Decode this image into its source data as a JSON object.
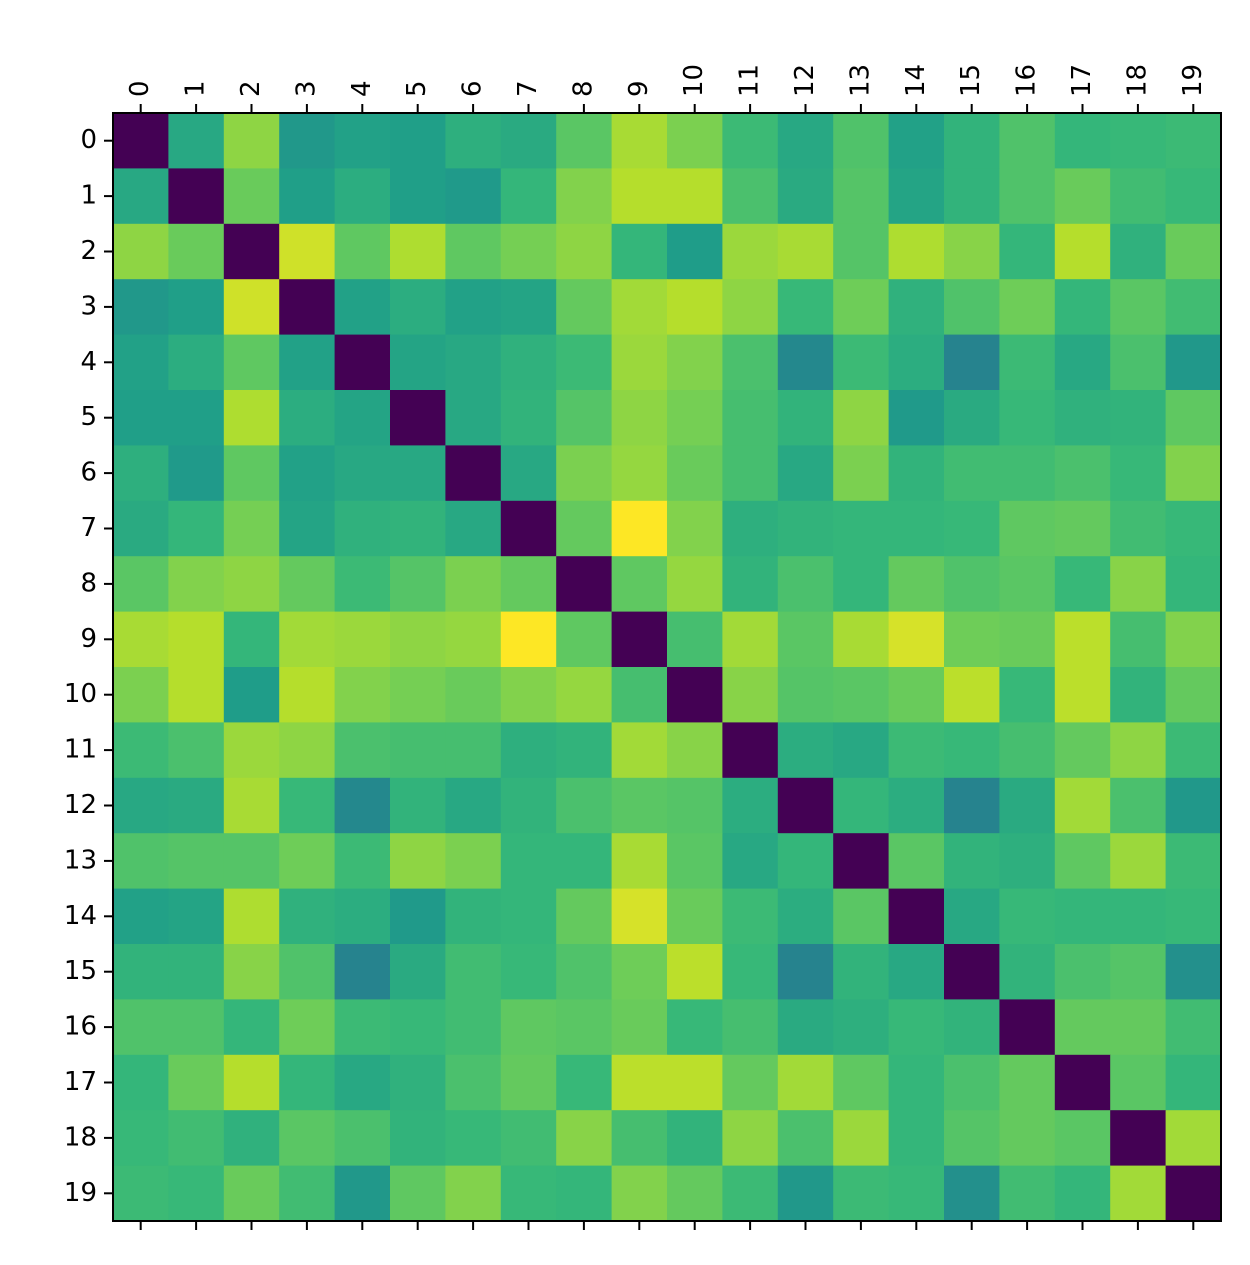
{
  "chart_data": {
    "type": "heatmap",
    "colormap": "viridis",
    "zlim": [
      0,
      1
    ],
    "xlim": [
      -0.5,
      19.5
    ],
    "ylim": [
      19.5,
      -0.5
    ],
    "xticks": [
      0,
      1,
      2,
      3,
      4,
      5,
      6,
      7,
      8,
      9,
      10,
      11,
      12,
      13,
      14,
      15,
      16,
      17,
      18,
      19
    ],
    "yticks": [
      0,
      1,
      2,
      3,
      4,
      5,
      6,
      7,
      8,
      9,
      10,
      11,
      12,
      13,
      14,
      15,
      16,
      17,
      18,
      19
    ],
    "values": [
      [
        0,
        0.6,
        0.83,
        0.53,
        0.57,
        0.56,
        0.63,
        0.61,
        0.74,
        0.87,
        0.8,
        0.68,
        0.6,
        0.72,
        0.57,
        0.65,
        0.72,
        0.66,
        0.67,
        0.68
      ],
      [
        0.6,
        0,
        0.77,
        0.56,
        0.62,
        0.56,
        0.54,
        0.66,
        0.81,
        0.89,
        0.89,
        0.71,
        0.61,
        0.73,
        0.58,
        0.65,
        0.72,
        0.77,
        0.69,
        0.67
      ],
      [
        0.83,
        0.77,
        0,
        0.93,
        0.75,
        0.88,
        0.75,
        0.79,
        0.83,
        0.66,
        0.55,
        0.85,
        0.87,
        0.73,
        0.88,
        0.82,
        0.66,
        0.89,
        0.64,
        0.77
      ],
      [
        0.53,
        0.56,
        0.93,
        0,
        0.57,
        0.62,
        0.57,
        0.58,
        0.76,
        0.86,
        0.89,
        0.83,
        0.67,
        0.78,
        0.64,
        0.72,
        0.78,
        0.66,
        0.74,
        0.69
      ],
      [
        0.57,
        0.62,
        0.75,
        0.57,
        0,
        0.58,
        0.6,
        0.64,
        0.68,
        0.85,
        0.81,
        0.71,
        0.47,
        0.68,
        0.62,
        0.45,
        0.68,
        0.6,
        0.71,
        0.53
      ],
      [
        0.56,
        0.56,
        0.88,
        0.62,
        0.58,
        0,
        0.6,
        0.65,
        0.73,
        0.83,
        0.79,
        0.7,
        0.65,
        0.83,
        0.54,
        0.61,
        0.67,
        0.64,
        0.65,
        0.75
      ],
      [
        0.63,
        0.54,
        0.75,
        0.57,
        0.6,
        0.6,
        0,
        0.6,
        0.8,
        0.84,
        0.77,
        0.7,
        0.6,
        0.8,
        0.65,
        0.69,
        0.69,
        0.71,
        0.67,
        0.81
      ],
      [
        0.61,
        0.66,
        0.79,
        0.58,
        0.64,
        0.65,
        0.6,
        0,
        0.76,
        1.0,
        0.81,
        0.63,
        0.65,
        0.66,
        0.66,
        0.67,
        0.75,
        0.76,
        0.69,
        0.67
      ],
      [
        0.74,
        0.81,
        0.83,
        0.76,
        0.68,
        0.73,
        0.8,
        0.76,
        0,
        0.75,
        0.84,
        0.65,
        0.71,
        0.66,
        0.76,
        0.72,
        0.74,
        0.67,
        0.82,
        0.66
      ],
      [
        0.87,
        0.89,
        0.66,
        0.86,
        0.85,
        0.83,
        0.84,
        1.0,
        0.75,
        0,
        0.7,
        0.86,
        0.74,
        0.87,
        0.94,
        0.78,
        0.77,
        0.9,
        0.7,
        0.81
      ],
      [
        0.8,
        0.89,
        0.55,
        0.89,
        0.81,
        0.79,
        0.77,
        0.81,
        0.84,
        0.7,
        0,
        0.82,
        0.73,
        0.74,
        0.77,
        0.9,
        0.67,
        0.9,
        0.65,
        0.76
      ],
      [
        0.68,
        0.71,
        0.85,
        0.83,
        0.71,
        0.7,
        0.7,
        0.63,
        0.65,
        0.86,
        0.82,
        0,
        0.62,
        0.6,
        0.68,
        0.67,
        0.7,
        0.76,
        0.83,
        0.68
      ],
      [
        0.6,
        0.61,
        0.87,
        0.67,
        0.47,
        0.65,
        0.6,
        0.65,
        0.71,
        0.74,
        0.73,
        0.62,
        0,
        0.66,
        0.62,
        0.45,
        0.61,
        0.86,
        0.71,
        0.53
      ],
      [
        0.72,
        0.73,
        0.73,
        0.78,
        0.68,
        0.83,
        0.8,
        0.66,
        0.66,
        0.87,
        0.74,
        0.6,
        0.66,
        0,
        0.74,
        0.65,
        0.63,
        0.75,
        0.85,
        0.68
      ],
      [
        0.57,
        0.58,
        0.88,
        0.64,
        0.62,
        0.54,
        0.65,
        0.66,
        0.76,
        0.94,
        0.77,
        0.68,
        0.62,
        0.74,
        0,
        0.6,
        0.67,
        0.66,
        0.66,
        0.67
      ],
      [
        0.65,
        0.65,
        0.82,
        0.72,
        0.45,
        0.61,
        0.69,
        0.67,
        0.72,
        0.78,
        0.9,
        0.67,
        0.45,
        0.65,
        0.6,
        0,
        0.65,
        0.71,
        0.73,
        0.5
      ],
      [
        0.72,
        0.72,
        0.66,
        0.78,
        0.68,
        0.67,
        0.69,
        0.75,
        0.74,
        0.77,
        0.67,
        0.7,
        0.61,
        0.63,
        0.67,
        0.65,
        0,
        0.76,
        0.76,
        0.69
      ],
      [
        0.66,
        0.77,
        0.89,
        0.66,
        0.6,
        0.64,
        0.71,
        0.76,
        0.67,
        0.9,
        0.9,
        0.76,
        0.86,
        0.75,
        0.66,
        0.71,
        0.76,
        0,
        0.74,
        0.66
      ],
      [
        0.67,
        0.69,
        0.64,
        0.74,
        0.71,
        0.65,
        0.67,
        0.69,
        0.82,
        0.7,
        0.65,
        0.83,
        0.71,
        0.85,
        0.66,
        0.73,
        0.76,
        0.74,
        0,
        0.86
      ],
      [
        0.68,
        0.67,
        0.77,
        0.69,
        0.53,
        0.75,
        0.81,
        0.67,
        0.66,
        0.81,
        0.76,
        0.68,
        0.53,
        0.68,
        0.67,
        0.5,
        0.69,
        0.66,
        0.86,
        0
      ]
    ]
  }
}
